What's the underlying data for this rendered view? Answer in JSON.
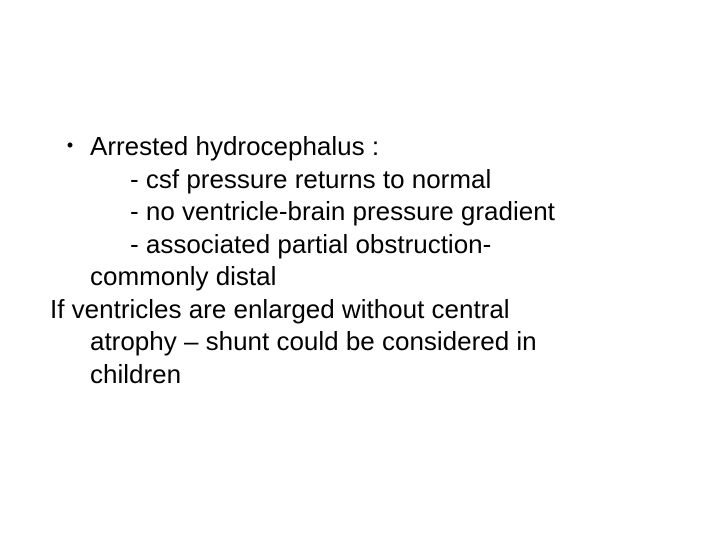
{
  "slide": {
    "bullet_title": "Arrested hydrocephalus :",
    "sub1": "- csf pressure returns to normal",
    "sub2": "- no ventricle-brain pressure gradient",
    "sub3": "- associated partial obstruction-",
    "sub3_cont": "commonly distal",
    "closing_line1": "If ventricles are enlarged without central",
    "closing_line2": "atrophy – shunt could be considered in",
    "closing_line3": "children",
    "text_color": "#000000",
    "background_color": "#ffffff",
    "fontsize": 26
  }
}
